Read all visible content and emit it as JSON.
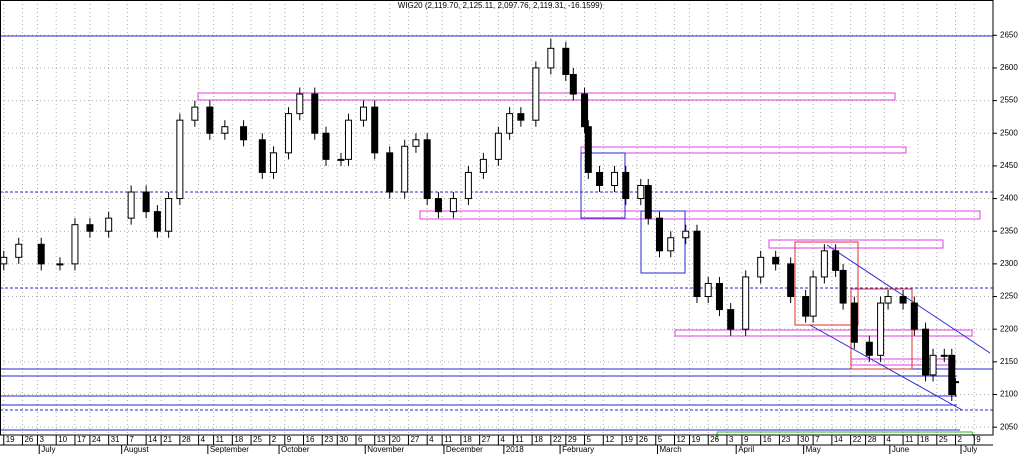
{
  "chart_data": {
    "type": "candlestick",
    "title": "WIG20 (2,119.70, 2,125.11, 2,097.76, 2,119.31, -16.1599)",
    "x": [
      1,
      5,
      11,
      16,
      20,
      24,
      29,
      35,
      39,
      42,
      45,
      48,
      52,
      56,
      60,
      65,
      70,
      73,
      77,
      80,
      84,
      87,
      91,
      93,
      97,
      100,
      104,
      108,
      111,
      114,
      117,
      121,
      125,
      129,
      133,
      136,
      139,
      143,
      147,
      151,
      153,
      156,
      157,
      160,
      164,
      167,
      171,
      173,
      176,
      179,
      183,
      186,
      189,
      192,
      195,
      199,
      203,
      207,
      211,
      215,
      217,
      220,
      223,
      225,
      228,
      232,
      235,
      237,
      241,
      244,
      247,
      249,
      252,
      254,
      255
    ],
    "open": [
      2300,
      2310,
      2330,
      2300,
      2300,
      2360,
      2350,
      2370,
      2410,
      2380,
      2350,
      2400,
      2520,
      2540,
      2500,
      2510,
      2490,
      2440,
      2470,
      2530,
      2560,
      2500,
      2460,
      2460,
      2520,
      2540,
      2470,
      2410,
      2480,
      2490,
      2400,
      2380,
      2400,
      2440,
      2460,
      2500,
      2530,
      2520,
      2600,
      2630,
      2590,
      2560,
      2510,
      2440,
      2420,
      2440,
      2400,
      2420,
      2370,
      2320,
      2340,
      2350,
      2250,
      2270,
      2230,
      2200,
      2280,
      2310,
      2300,
      2250,
      2220,
      2280,
      2320,
      2290,
      2240,
      2180,
      2160,
      2240,
      2250,
      2240,
      2200,
      2130,
      2160,
      2160,
      2119.7
    ],
    "high": [
      2320,
      2340,
      2340,
      2310,
      2370,
      2370,
      2380,
      2420,
      2420,
      2390,
      2410,
      2530,
      2550,
      2550,
      2520,
      2520,
      2500,
      2480,
      2540,
      2570,
      2570,
      2510,
      2470,
      2530,
      2550,
      2550,
      2480,
      2490,
      2500,
      2500,
      2410,
      2410,
      2450,
      2470,
      2510,
      2540,
      2540,
      2610,
      2645,
      2640,
      2600,
      2570,
      2520,
      2450,
      2450,
      2450,
      2430,
      2430,
      2380,
      2350,
      2360,
      2360,
      2280,
      2280,
      2240,
      2290,
      2320,
      2320,
      2310,
      2260,
      2290,
      2330,
      2330,
      2300,
      2250,
      2190,
      2250,
      2260,
      2260,
      2250,
      2210,
      2170,
      2170,
      2170,
      2125.11
    ],
    "low": [
      2290,
      2300,
      2290,
      2290,
      2290,
      2340,
      2340,
      2360,
      2370,
      2340,
      2340,
      2390,
      2510,
      2490,
      2490,
      2480,
      2430,
      2430,
      2460,
      2520,
      2490,
      2450,
      2450,
      2450,
      2510,
      2460,
      2400,
      2400,
      2470,
      2390,
      2370,
      2370,
      2390,
      2430,
      2450,
      2490,
      2510,
      2510,
      2590,
      2580,
      2550,
      2500,
      2430,
      2410,
      2410,
      2390,
      2390,
      2360,
      2310,
      2310,
      2330,
      2240,
      2240,
      2220,
      2190,
      2190,
      2270,
      2290,
      2240,
      2210,
      2210,
      2270,
      2280,
      2230,
      2170,
      2150,
      2150,
      2230,
      2230,
      2190,
      2120,
      2120,
      2150,
      2090,
      2097.76
    ],
    "close": [
      2310,
      2330,
      2300,
      2300,
      2360,
      2350,
      2370,
      2410,
      2380,
      2350,
      2400,
      2520,
      2540,
      2500,
      2510,
      2490,
      2440,
      2470,
      2530,
      2560,
      2500,
      2460,
      2460,
      2520,
      2540,
      2470,
      2410,
      2480,
      2490,
      2400,
      2380,
      2400,
      2440,
      2460,
      2500,
      2530,
      2520,
      2600,
      2630,
      2590,
      2560,
      2510,
      2440,
      2420,
      2440,
      2400,
      2420,
      2370,
      2320,
      2340,
      2350,
      2250,
      2270,
      2230,
      2200,
      2280,
      2310,
      2300,
      2250,
      2220,
      2280,
      2320,
      2290,
      2240,
      2180,
      2160,
      2240,
      2250,
      2240,
      2200,
      2130,
      2160,
      2160,
      2100,
      2119.31
    ],
    "up_color": "#ffffff",
    "down_color": "#000000",
    "ylim": [
      2038,
      2704
    ],
    "yticks": [
      2050,
      2100,
      2150,
      2200,
      2250,
      2300,
      2350,
      2400,
      2450,
      2500,
      2550,
      2600,
      2650
    ],
    "xlim": [
      0,
      265
    ],
    "xticks": [
      {
        "value": 1,
        "label": "19"
      },
      {
        "value": 6,
        "label": "26"
      },
      {
        "value": 10,
        "label": "3"
      },
      {
        "value": 15,
        "label": "10"
      },
      {
        "value": 20,
        "label": "17"
      },
      {
        "value": 24,
        "label": "24"
      },
      {
        "value": 29,
        "label": "31"
      },
      {
        "value": 34,
        "label": "7"
      },
      {
        "value": 39,
        "label": "14"
      },
      {
        "value": 43,
        "label": "21"
      },
      {
        "value": 48,
        "label": "28"
      },
      {
        "value": 53,
        "label": "4"
      },
      {
        "value": 57,
        "label": "11"
      },
      {
        "value": 62,
        "label": "18"
      },
      {
        "value": 67,
        "label": "25"
      },
      {
        "value": 72,
        "label": "2"
      },
      {
        "value": 76,
        "label": "9"
      },
      {
        "value": 81,
        "label": "16"
      },
      {
        "value": 86,
        "label": "23"
      },
      {
        "value": 90,
        "label": "30"
      },
      {
        "value": 95,
        "label": "6"
      },
      {
        "value": 100,
        "label": "13"
      },
      {
        "value": 104,
        "label": "20"
      },
      {
        "value": 109,
        "label": "27"
      },
      {
        "value": 114,
        "label": "4"
      },
      {
        "value": 118,
        "label": "11"
      },
      {
        "value": 123,
        "label": "18"
      },
      {
        "value": 128,
        "label": "27"
      },
      {
        "value": 133,
        "label": "4"
      },
      {
        "value": 137,
        "label": "11"
      },
      {
        "value": 142,
        "label": "18"
      },
      {
        "value": 147,
        "label": "22"
      },
      {
        "value": 151,
        "label": "29"
      },
      {
        "value": 156,
        "label": "5"
      },
      {
        "value": 161,
        "label": "12"
      },
      {
        "value": 166,
        "label": "19"
      },
      {
        "value": 170,
        "label": "26"
      },
      {
        "value": 175,
        "label": "5"
      },
      {
        "value": 180,
        "label": "12"
      },
      {
        "value": 184,
        "label": "19"
      },
      {
        "value": 189,
        "label": "26"
      },
      {
        "value": 194,
        "label": "3"
      },
      {
        "value": 198,
        "label": "9"
      },
      {
        "value": 203,
        "label": "16"
      },
      {
        "value": 208,
        "label": "23"
      },
      {
        "value": 213,
        "label": "30"
      },
      {
        "value": 217,
        "label": "7"
      },
      {
        "value": 222,
        "label": "14"
      },
      {
        "value": 227,
        "label": "22"
      },
      {
        "value": 231,
        "label": "28"
      },
      {
        "value": 236,
        "label": "4"
      },
      {
        "value": 241,
        "label": "11"
      },
      {
        "value": 245,
        "label": "18"
      },
      {
        "value": 250,
        "label": "25"
      },
      {
        "value": 255,
        "label": "2"
      },
      {
        "value": 260,
        "label": "9"
      }
    ],
    "month_ticks": [
      {
        "value": 11,
        "label": "July"
      },
      {
        "value": 33,
        "label": "August"
      },
      {
        "value": 56,
        "label": "September"
      },
      {
        "value": 75,
        "label": "October"
      },
      {
        "value": 98,
        "label": "November"
      },
      {
        "value": 119,
        "label": "December"
      },
      {
        "value": 135,
        "label": "2018"
      },
      {
        "value": 150,
        "label": "February"
      },
      {
        "value": 176,
        "label": "March"
      },
      {
        "value": 197,
        "label": "April"
      },
      {
        "value": 215,
        "label": "May"
      },
      {
        "value": 238,
        "label": "June"
      },
      {
        "value": 257,
        "label": "July"
      }
    ],
    "grid": true
  }
}
